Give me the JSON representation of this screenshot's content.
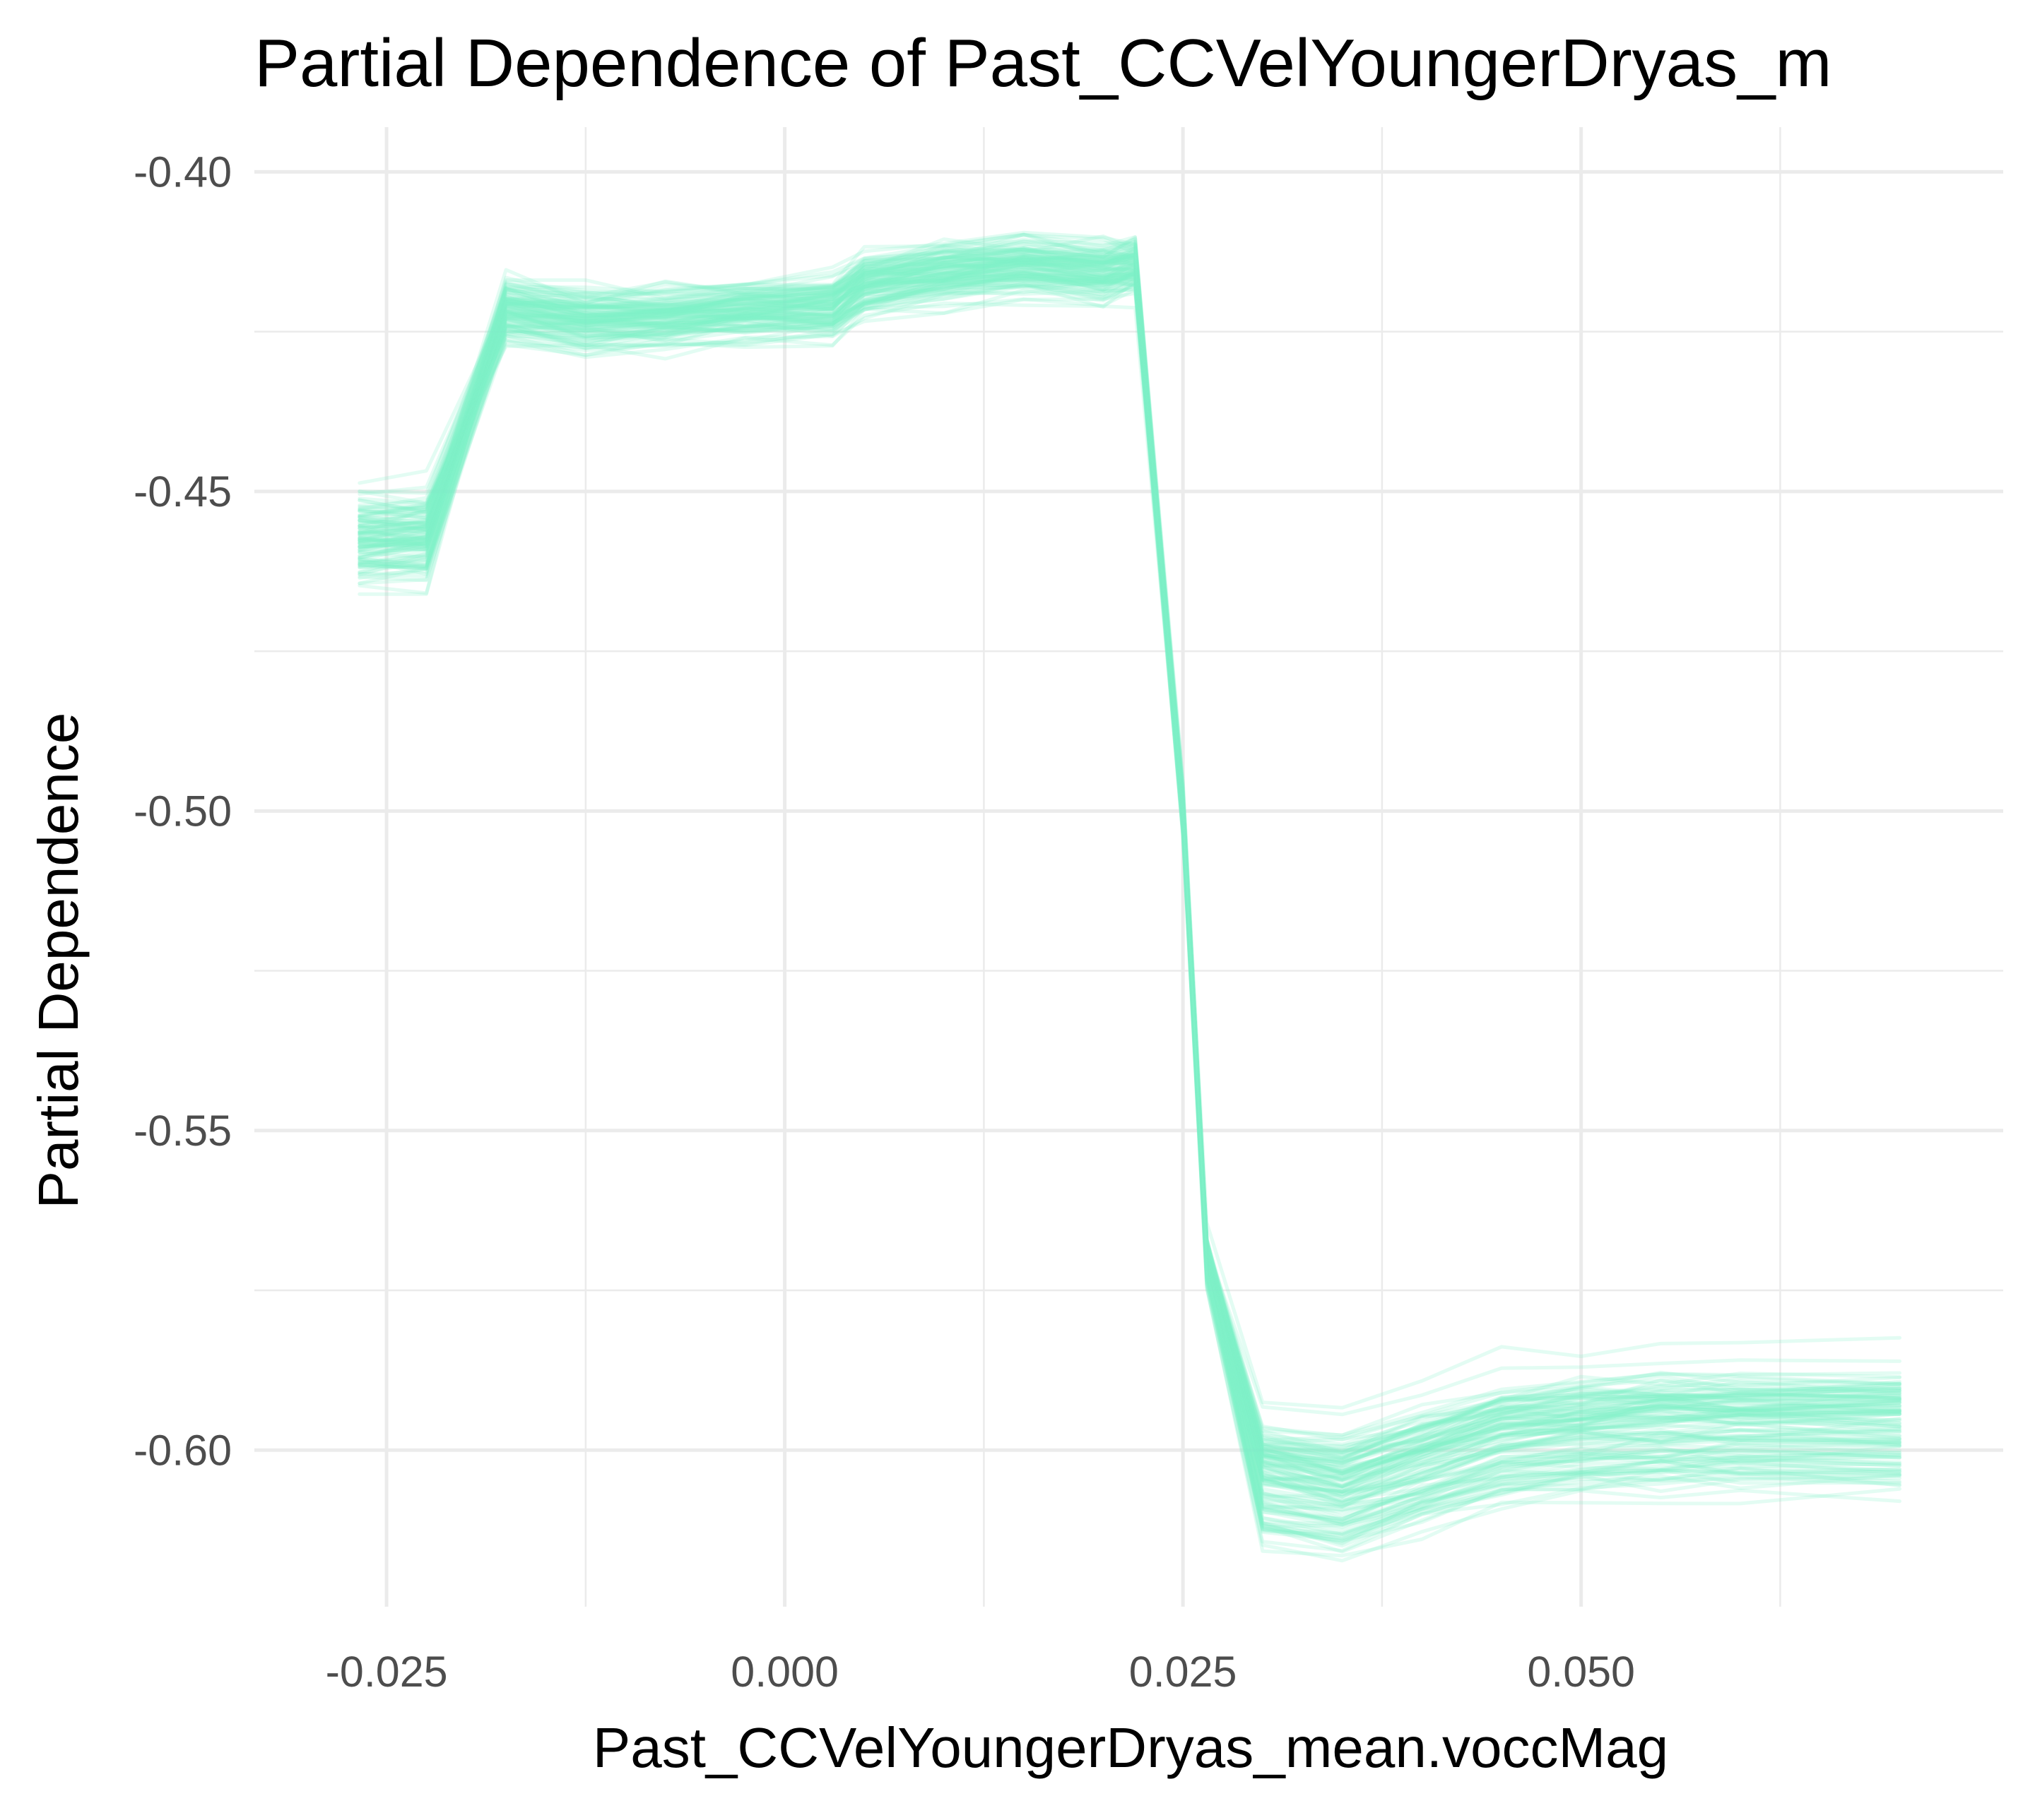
{
  "chart_data": {
    "type": "line",
    "title": "Partial Dependence of Past_CCVelYoungerDryas_m",
    "xlabel": "Past_CCVelYoungerDryas_mean.voccMag",
    "ylabel": "Partial Dependence",
    "xlim": [
      -0.0333,
      0.0765
    ],
    "ylim": [
      -0.6245,
      -0.393
    ],
    "x_ticks": [
      -0.025,
      0.0,
      0.025,
      0.05
    ],
    "x_tick_labels": [
      "-0.025",
      "0.000",
      "0.025",
      "0.050"
    ],
    "y_ticks": [
      -0.6,
      -0.55,
      -0.5,
      -0.45,
      -0.4
    ],
    "y_tick_labels": [
      "-0.60",
      "-0.55",
      "-0.50",
      "-0.45",
      "-0.40"
    ],
    "line_color": "#7ff2c8",
    "grid": true,
    "legend": "none",
    "n_curves": 120,
    "curve_shape": {
      "x": [
        -0.0267,
        -0.0225,
        -0.0175,
        -0.0125,
        -0.0075,
        -0.0025,
        0.003,
        0.005,
        0.01,
        0.015,
        0.02,
        0.022,
        0.025,
        0.0265,
        0.03,
        0.035,
        0.04,
        0.045,
        0.05,
        0.055,
        0.06,
        0.07
      ],
      "y": [
        -0.457,
        -0.4565,
        -0.422,
        -0.4235,
        -0.423,
        -0.422,
        -0.4215,
        -0.418,
        -0.416,
        -0.415,
        -0.416,
        -0.415,
        -0.5,
        -0.57,
        -0.604,
        -0.606,
        -0.602,
        -0.598,
        -0.597,
        -0.596,
        -0.596,
        -0.596
      ]
    }
  }
}
